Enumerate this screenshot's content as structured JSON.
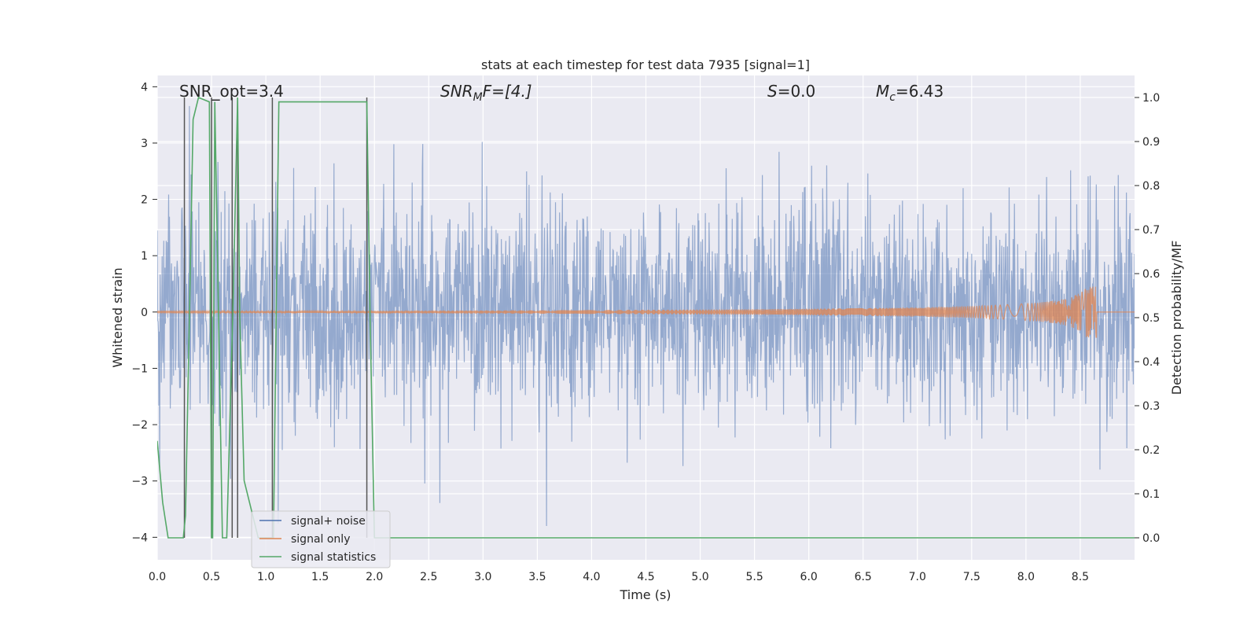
{
  "chart_data": {
    "type": "line",
    "title": "stats at each timestep for test data 7935 [signal=1]",
    "xlabel": "Time (s)",
    "ylabel_left": "Whitened strain",
    "ylabel_right": "Detection probability/MF",
    "xlim": [
      0.0,
      9.0
    ],
    "ylim_left": [
      -4.4,
      4.2
    ],
    "ylim_right": [
      -0.05,
      1.05
    ],
    "x_ticks": [
      0.0,
      0.5,
      1.0,
      1.5,
      2.0,
      2.5,
      3.0,
      3.5,
      4.0,
      4.5,
      5.0,
      5.5,
      6.0,
      6.5,
      7.0,
      7.5,
      8.0,
      8.5
    ],
    "x_tick_labels": [
      "0.0",
      "0.5",
      "1.0",
      "1.5",
      "2.0",
      "2.5",
      "3.0",
      "3.5",
      "4.0",
      "4.5",
      "5.0",
      "5.5",
      "6.0",
      "6.5",
      "7.0",
      "7.5",
      "8.0",
      "8.5"
    ],
    "y_left_ticks": [
      -4,
      -3,
      -2,
      -1,
      0,
      1,
      2,
      3,
      4
    ],
    "y_left_tick_labels": [
      "−4",
      "−3",
      "−2",
      "−1",
      "0",
      "1",
      "2",
      "3",
      "4"
    ],
    "y_right_ticks": [
      0.0,
      0.1,
      0.2,
      0.3,
      0.4,
      0.5,
      0.6,
      0.7,
      0.8,
      0.9,
      1.0
    ],
    "y_right_tick_labels": [
      "0.0",
      "0.1",
      "0.2",
      "0.3",
      "0.4",
      "0.5",
      "0.6",
      "0.7",
      "0.8",
      "0.9",
      "1.0"
    ],
    "grid": true,
    "legend_position": "lower-left",
    "annotations": {
      "snr_opt": "SNR_opt=3.4",
      "snr_mf_prefix": "SNR",
      "snr_mf_sub": "M",
      "snr_mf_suffix": "F=[4.]",
      "s_prefix": "S",
      "s_suffix": "=0.0",
      "mc_prefix": "M",
      "mc_sub": "c",
      "mc_suffix": "=6.43"
    },
    "series": [
      {
        "name": "signal+ noise",
        "color": "#4c72b0",
        "axis": "left",
        "description": "whitened noisy strain, roughly Gaussian, amplitude mostly within ±2.4, peaks to ±3.8",
        "envelope": {
          "typical_abs": 1.8,
          "max_abs": 3.8
        }
      },
      {
        "name": "signal only",
        "color": "#dd8452",
        "axis": "left",
        "chirp": {
          "t_start": 0.0,
          "t_merger": 8.65,
          "amp_start": 0.01,
          "amp_peak": 0.45
        }
      },
      {
        "name": "signal statistics",
        "color": "#55a868",
        "axis": "right",
        "x": [
          0.0,
          0.05,
          0.1,
          0.24,
          0.26,
          0.3,
          0.33,
          0.38,
          0.48,
          0.5,
          0.51,
          0.53,
          0.6,
          0.64,
          0.7,
          0.74,
          0.76,
          0.8,
          0.93,
          0.97,
          1.03,
          1.07,
          1.1,
          1.12,
          1.2,
          1.9,
          1.93,
          1.96,
          2.0,
          2.1,
          9.0
        ],
        "values": [
          0.22,
          0.08,
          0.0,
          0.0,
          0.05,
          0.55,
          0.95,
          1.0,
          0.99,
          0.0,
          0.0,
          0.99,
          0.0,
          0.0,
          0.55,
          1.0,
          0.5,
          0.13,
          0.0,
          0.0,
          0.0,
          0.0,
          0.6,
          0.99,
          0.99,
          0.99,
          0.99,
          0.5,
          0.0,
          0.0,
          0.0
        ]
      },
      {
        "name": "",
        "color": "#555555",
        "axis": "right",
        "type": "vlines",
        "x": [
          0.25,
          0.5,
          0.69,
          0.74,
          1.06,
          1.93
        ],
        "ymin": 0.0,
        "ymax": 1.0
      }
    ]
  }
}
